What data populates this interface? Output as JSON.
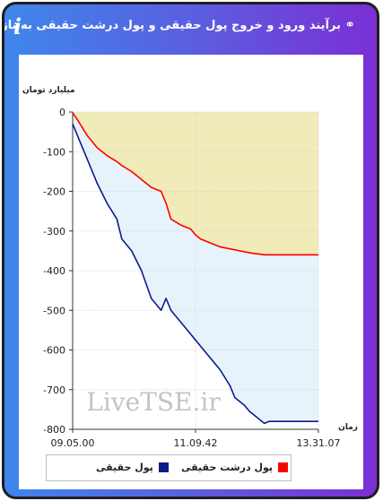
{
  "header": {
    "title": "برآیند ورود و خروج پول حقیقی و پول درشت حقیقی به بازار",
    "info_icon": "info-icon",
    "link_icon": "link-icon"
  },
  "watermark": "LiveTSE.ir",
  "chart_data": {
    "type": "line",
    "ylabel": "میلیارد تومان",
    "xlabel": "زمان",
    "ylim": [
      -800,
      0
    ],
    "yticks": [
      0,
      -100,
      -200,
      -300,
      -400,
      -500,
      -600,
      -700,
      -800
    ],
    "xticks": [
      "09.05.00",
      "11.09.42",
      "13.31.07"
    ],
    "legend": "bottom",
    "series": [
      {
        "name": "پول حقیقی",
        "color": "#0d1a8c",
        "x": [
          0,
          0.02,
          0.06,
          0.1,
          0.14,
          0.18,
          0.2,
          0.24,
          0.28,
          0.32,
          0.36,
          0.38,
          0.4,
          0.44,
          0.46,
          0.48,
          0.5,
          0.52,
          0.56,
          0.6,
          0.64,
          0.66,
          0.7,
          0.72,
          0.74,
          0.76,
          0.78,
          0.8,
          1
        ],
        "y": [
          -30,
          -60,
          -120,
          -180,
          -230,
          -270,
          -320,
          -350,
          -400,
          -470,
          -500,
          -470,
          -500,
          -530,
          -545,
          -560,
          -575,
          -590,
          -620,
          -650,
          -690,
          -720,
          -740,
          -755,
          -765,
          -775,
          -785,
          -780,
          -780
        ]
      },
      {
        "name": "پول درشت حقیقی",
        "color": "#ff0000",
        "x": [
          0,
          0.02,
          0.06,
          0.1,
          0.14,
          0.18,
          0.2,
          0.24,
          0.28,
          0.32,
          0.36,
          0.38,
          0.4,
          0.44,
          0.46,
          0.48,
          0.5,
          0.52,
          0.56,
          0.6,
          0.64,
          0.68,
          0.72,
          0.74,
          0.76,
          0.78,
          0.8,
          1
        ],
        "y": [
          -2,
          -20,
          -60,
          -90,
          -110,
          -125,
          -135,
          -150,
          -170,
          -190,
          -200,
          -230,
          -270,
          -285,
          -290,
          -295,
          -310,
          -320,
          -330,
          -340,
          -345,
          -350,
          -355,
          -357,
          -358,
          -360,
          -360,
          -360
        ]
      }
    ]
  }
}
